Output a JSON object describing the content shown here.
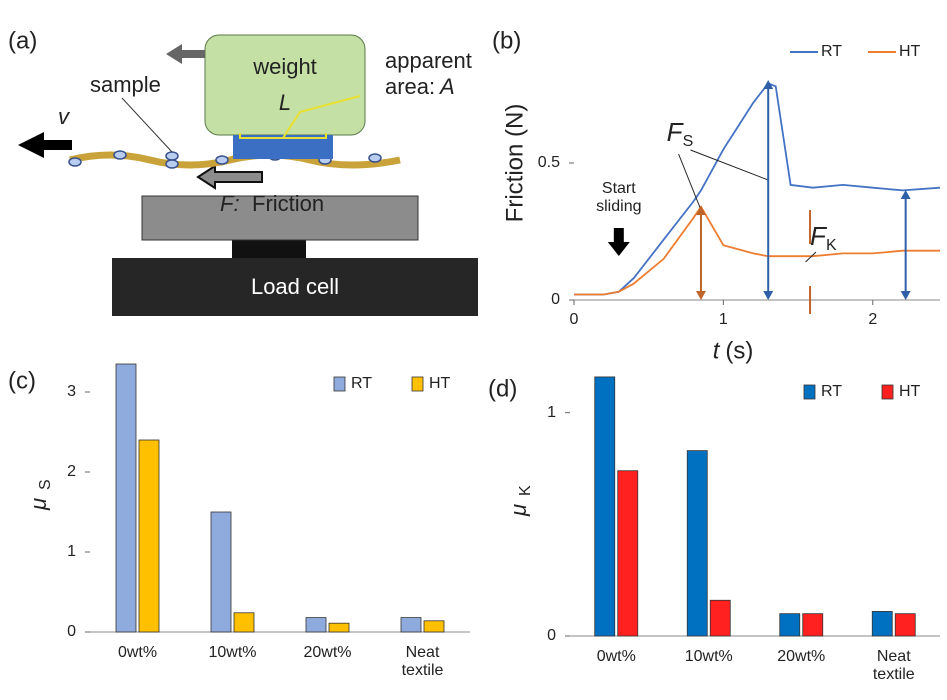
{
  "diagram": {
    "panel_label": "(a)",
    "weight": "weight",
    "load": "L",
    "apparent": "apparent",
    "area": "area:",
    "area_symbol": "A",
    "sample": "sample",
    "velocity": "v",
    "friction_symbol": "F:",
    "friction": "Friction",
    "load_cell": "Load cell"
  },
  "chart_data": [
    {
      "type": "line",
      "panel_label": "(b)",
      "y_label": "Friction (N)",
      "x_label": "t",
      "x_unit": "(s)",
      "x": [
        0,
        0.2,
        0.3,
        0.4,
        0.6,
        0.8,
        0.85,
        1.0,
        1.2,
        1.3,
        1.35,
        1.45,
        1.6,
        1.8,
        2.0,
        2.2,
        2.45
      ],
      "series": [
        {
          "name": "RT",
          "color": "#4472c4",
          "values": [
            0.02,
            0.02,
            0.03,
            0.08,
            0.22,
            0.36,
            0.4,
            0.55,
            0.72,
            0.79,
            0.78,
            0.42,
            0.41,
            0.42,
            0.41,
            0.4,
            0.41
          ]
        },
        {
          "name": "HT",
          "color": "#ed7d31",
          "values": [
            0.02,
            0.02,
            0.03,
            0.06,
            0.15,
            0.3,
            0.34,
            0.2,
            0.17,
            0.16,
            0.16,
            0.16,
            0.16,
            0.17,
            0.17,
            0.18,
            0.18
          ]
        }
      ],
      "xlim": [
        0,
        2.45
      ],
      "ylim": [
        0,
        1.0
      ],
      "xticks": [
        0,
        1,
        2
      ],
      "yticks": [
        0,
        0.5
      ],
      "annotations": {
        "start": "Start sliding",
        "fs": "F",
        "fs_sub": "S",
        "fk": "F",
        "fk_sub": "K"
      },
      "legend": "top-right"
    },
    {
      "type": "bar",
      "panel_label": "(c)",
      "y_label": "μ",
      "y_label_sub": "S",
      "categories": [
        "0wt%",
        "10wt%",
        "20wt%",
        "Neat textile"
      ],
      "series": [
        {
          "name": "RT",
          "color": "#8faadc",
          "values": [
            3.35,
            1.5,
            0.18,
            0.18
          ]
        },
        {
          "name": "HT",
          "color": "#ffc000",
          "values": [
            2.4,
            0.24,
            0.11,
            0.14
          ]
        }
      ],
      "ylim": [
        0,
        3.4
      ],
      "yticks": [
        0,
        1,
        2,
        3
      ],
      "legend": "top-right"
    },
    {
      "type": "bar",
      "panel_label": "(d)",
      "y_label": "μ",
      "y_label_sub": "K",
      "categories": [
        "0wt%",
        "10wt%",
        "20wt%",
        "Neat textile"
      ],
      "series": [
        {
          "name": "RT",
          "color": "#0070c0",
          "values": [
            1.16,
            0.83,
            0.1,
            0.11
          ]
        },
        {
          "name": "HT",
          "color": "#ff2020",
          "values": [
            0.74,
            0.16,
            0.1,
            0.1
          ]
        }
      ],
      "ylim": [
        0,
        1.2
      ],
      "yticks": [
        0,
        1
      ],
      "legend": "top-right"
    }
  ]
}
